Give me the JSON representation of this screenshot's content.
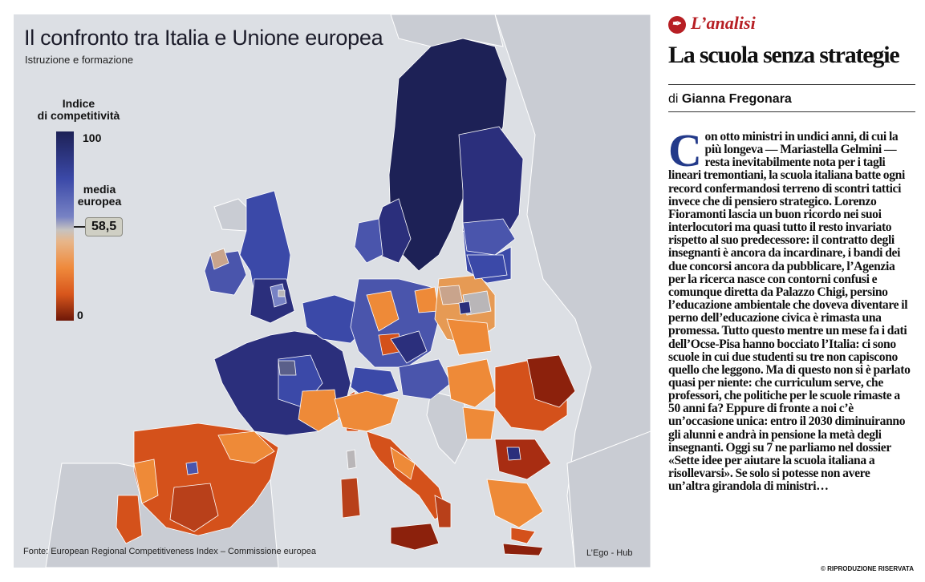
{
  "map": {
    "title": "Il confronto tra Italia e Unione europea",
    "subtitle": "Istruzione e formazione",
    "legend": {
      "title_line1": "Indice",
      "title_line2": "di competitività",
      "max_label": "100",
      "min_label": "0",
      "average_label_line1": "media",
      "average_label_line2": "europea",
      "average_value": "58,5",
      "scale_colors": [
        "#1d2156",
        "#3b49a8",
        "#7782c4",
        "#c6c3c0",
        "#e7b68a",
        "#ef8a3c",
        "#d8561c",
        "#6e1808"
      ]
    },
    "source": "Fonte: European Regional Competitiveness Index – Commissione europea",
    "credit": "L’Ego - Hub",
    "colors": {
      "sea": "#dcdfe4",
      "non_eu_land": "#c9ccd3",
      "high": "#2b2f7c",
      "above_average": "#4a55ac",
      "average": "#b9b6b8",
      "below_average": "#ee8a38",
      "low": "#d4511b",
      "very_low": "#8c210c"
    }
  },
  "article": {
    "kicker": "L’analisi",
    "kicker_icon": "pen-nib-icon",
    "headline": "La scuola senza strategie",
    "byline_prefix": "di",
    "byline_author": "Gianna Fregonara",
    "dropcap": "C",
    "body": "on otto ministri in undici anni, di cui la più longeva — Mariastella Gelmini — resta inevitabilmente nota per i tagli lineari tremontiani, la scuola italiana batte ogni record confermandosi terreno di scontri tattici invece che di pensiero strategico. Lorenzo Fioramonti lascia un buon ricordo nei suoi interlocutori ma quasi tutto il resto invariato rispetto al suo predecessore: il contratto degli insegnanti è ancora da incardinare, i bandi dei due concorsi ancora da pubblicare, l’Agenzia per la ricerca nasce con contorni confusi e comunque diretta da Palazzo Chigi, persino l’educazione ambientale che doveva diventare il perno dell’educazione civica è rimasta una promessa. Tutto questo mentre un mese fa i dati dell’Ocse-Pisa hanno bocciato l’Italia: ci sono scuole in cui due studenti su tre non capiscono quello che leggono. Ma di questo non si è parlato quasi per niente: che curriculum serve, che professori, che politiche per le scuole rimaste a 50 anni fa? Eppure di fronte a noi c’è un’occasione unica: entro il 2030 diminuiranno gli alunni e andrà in pensione la metà degli insegnanti. Oggi su 7 ne parliamo nel dossier «Sette idee per aiutare la scuola italiana a risollevarsi». Se solo si potesse non avere un’altra girandola di ministri…",
    "footer": "© RIPRODUZIONE RISERVATA"
  }
}
